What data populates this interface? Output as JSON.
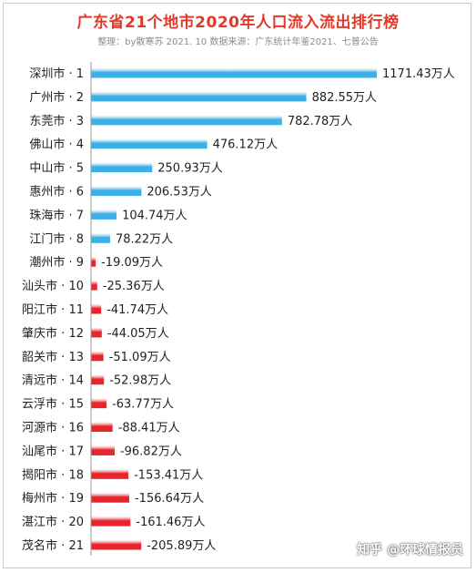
{
  "header": {
    "title": "广东省21个地市2020年人口流入流出排行榜",
    "subtitle": "整理：by散寒苏  2021. 10  数据来源：广东统计年鉴2021、七普公告"
  },
  "watermark": "知乎 @环球情报员",
  "colors": {
    "positive": "#3bb0e6",
    "negative": "#e8242d",
    "axis": "#9a9a9a",
    "title": "#e03a2b"
  },
  "chart_data": {
    "type": "bar",
    "orientation": "horizontal",
    "unit": "万人",
    "categories": [
      "深圳市 · 1",
      "广州市 · 2",
      "东莞市 · 3",
      "佛山市 · 4",
      "中山市 · 5",
      "惠州市 · 6",
      "珠海市 · 7",
      "江门市 · 8",
      "潮州市 · 9",
      "汕头市 · 10",
      "阳江市 · 11",
      "肇庆市 · 12",
      "韶关市 · 13",
      "清远市 · 14",
      "云浮市 · 15",
      "河源市 · 16",
      "汕尾市 · 17",
      "揭阳市 · 18",
      "梅州市 · 19",
      "湛江市 · 20",
      "茂名市 · 21"
    ],
    "values": [
      1171.43,
      882.55,
      782.78,
      476.12,
      250.93,
      206.53,
      104.74,
      78.22,
      -19.09,
      -25.36,
      -41.74,
      -44.05,
      -51.09,
      -52.98,
      -63.77,
      -88.41,
      -96.82,
      -153.41,
      -156.64,
      -161.46,
      -205.89
    ],
    "value_labels": [
      "1171.43万人",
      "882.55万人",
      "782.78万人",
      "476.12万人",
      "250.93万人",
      "206.53万人",
      "104.74万人",
      "78.22万人",
      "-19.09万人",
      "-25.36万人",
      "-41.74万人",
      "-44.05万人",
      "-51.09万人",
      "-52.98万人",
      "-63.77万人",
      "-88.41万人",
      "-96.82万人",
      "-153.41万人",
      "-156.64万人",
      "-161.46万人",
      "-205.89万人"
    ]
  }
}
